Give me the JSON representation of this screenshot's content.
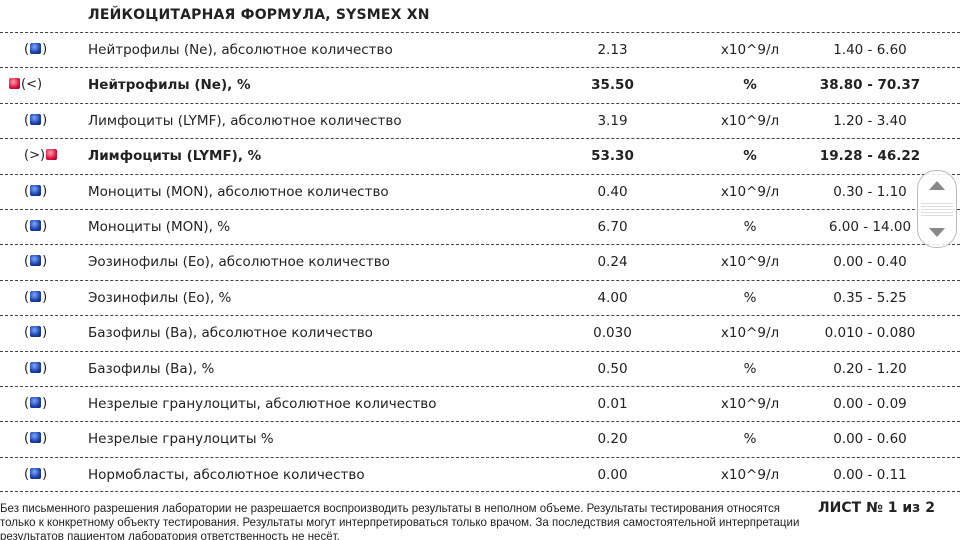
{
  "title": "ЛЕЙКОЦИТАРНАЯ ФОРМУЛА, SYSMEX XN",
  "colors": {
    "normal": "#1a3fa8",
    "abnormal": "#e0103a"
  },
  "rows": [
    {
      "flag": "()",
      "dot": "blue",
      "pos": "in",
      "name": "Нейтрофилы (Ne), абсолютное количество",
      "value": "2.13",
      "unit": "x10^9/л",
      "range": "1.40 - 6.60",
      "bold": false
    },
    {
      "flag": "(<)",
      "dot": "red",
      "pos": "before",
      "name": "Нейтрофилы (Ne), %",
      "value": "35.50",
      "unit": "%",
      "range": "38.80 - 70.37",
      "bold": true
    },
    {
      "flag": "()",
      "dot": "blue",
      "pos": "in",
      "name": "Лимфоциты (LYMF), абсолютное количество",
      "value": "3.19",
      "unit": "x10^9/л",
      "range": "1.20 - 3.40",
      "bold": false
    },
    {
      "flag": "(>)",
      "dot": "red",
      "pos": "after",
      "name": "Лимфоциты (LYMF), %",
      "value": "53.30",
      "unit": "%",
      "range": "19.28 - 46.22",
      "bold": true
    },
    {
      "flag": "()",
      "dot": "blue",
      "pos": "in",
      "name": "Моноциты (MON), абсолютное количество",
      "value": "0.40",
      "unit": "x10^9/л",
      "range": "0.30 - 1.10",
      "bold": false
    },
    {
      "flag": "()",
      "dot": "blue",
      "pos": "in",
      "name": "Моноциты (MON), %",
      "value": "6.70",
      "unit": "%",
      "range": "6.00 - 14.00",
      "bold": false
    },
    {
      "flag": "()",
      "dot": "blue",
      "pos": "in",
      "name": "Эозинофилы (Eo), абсолютное количество",
      "value": "0.24",
      "unit": "x10^9/л",
      "range": "0.00 - 0.40",
      "bold": false
    },
    {
      "flag": "()",
      "dot": "blue",
      "pos": "in",
      "name": "Эозинофилы (Eo), %",
      "value": "4.00",
      "unit": "%",
      "range": "0.35 - 5.25",
      "bold": false
    },
    {
      "flag": "()",
      "dot": "blue",
      "pos": "in",
      "name": "Базофилы (Ba), абсолютное количество",
      "value": "0.030",
      "unit": "x10^9/л",
      "range": "0.010 - 0.080",
      "bold": false
    },
    {
      "flag": "()",
      "dot": "blue",
      "pos": "in",
      "name": "Базофилы (Ba), %",
      "value": "0.50",
      "unit": "%",
      "range": "0.20 - 1.20",
      "bold": false
    },
    {
      "flag": "()",
      "dot": "blue",
      "pos": "in",
      "name": "Незрелые гранулоциты, абсолютное количество",
      "value": "0.01",
      "unit": "x10^9/л",
      "range": "0.00 - 0.09",
      "bold": false
    },
    {
      "flag": "()",
      "dot": "blue",
      "pos": "in",
      "name": "Незрелые гранулоциты %",
      "value": "0.20",
      "unit": "%",
      "range": "0.00 - 0.60",
      "bold": false
    },
    {
      "flag": "()",
      "dot": "blue",
      "pos": "in",
      "name": "Нормобласты, абсолютное количество",
      "value": "0.00",
      "unit": "x10^9/л",
      "range": "0.00 - 0.11",
      "bold": false
    }
  ],
  "footer": {
    "disclaimer": "Без письменного разрешения лаборатории не разрешается воспроизводить результаты в неполном объеме. Результаты тестирования относятся только к конкретному объекту тестирования. Результаты могут интерпретироваться только врачом. За последствия самостоятельной интерпретации результатов пациентом лаборатория ответственность не несёт.",
    "sheet": "ЛИСТ № 1 из 2"
  }
}
